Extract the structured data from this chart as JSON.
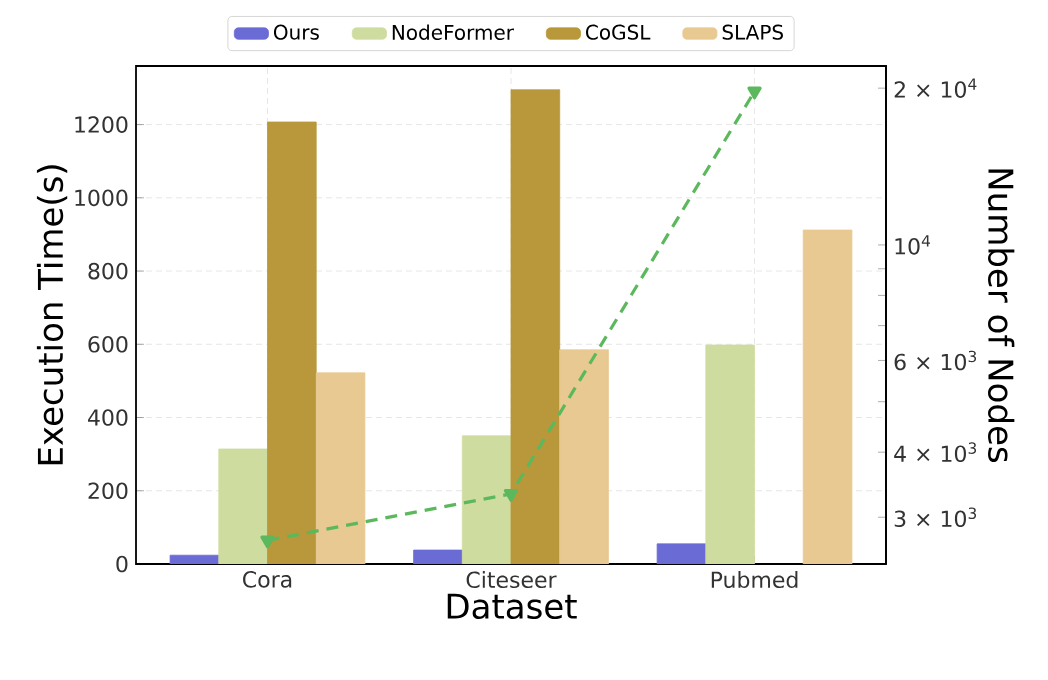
{
  "chart_data": {
    "type": "bar",
    "xlabel": "Dataset",
    "ylabel": "Execution Time(s)",
    "y2label": "Number of Nodes",
    "categories": [
      "Cora",
      "Citeseer",
      "Pubmed"
    ],
    "series": [
      {
        "name": "Ours",
        "color": "#6b6bd6",
        "values": [
          24,
          38,
          55
        ]
      },
      {
        "name": "NodeFormer",
        "color": "#cfdc9f",
        "values": [
          314,
          350,
          598
        ]
      },
      {
        "name": "CoGSL",
        "color": "#b8983a",
        "values": [
          1207,
          1295,
          null
        ]
      },
      {
        "name": "SLAPS",
        "color": "#e8c991",
        "values": [
          522,
          585,
          912
        ]
      },
      {
        "type": "line",
        "axis": "y2",
        "color": "#5cb85c",
        "marker": "triangle",
        "line_style": "dashed",
        "values": [
          2708,
          3327,
          19717
        ]
      }
    ],
    "ylim": [
      0,
      1360
    ],
    "yticks": [
      0,
      200,
      400,
      600,
      800,
      1000,
      1200
    ],
    "y2lim": [
      2440,
      22060
    ],
    "y2ticks": [
      {
        "value": 3000,
        "label": "3 × 10$^{3}$"
      },
      {
        "value": 4000,
        "label": "4 × 10$^{3}$"
      },
      {
        "value": 5000,
        "label": null
      },
      {
        "value": 6000,
        "label": "6 × 10$^{3}$"
      },
      {
        "value": 7000,
        "label": null
      },
      {
        "value": 8000,
        "label": null
      },
      {
        "value": 9000,
        "label": null
      },
      {
        "value": 10000,
        "label": "10$^{4}$"
      },
      {
        "value": 20000,
        "label": "2 × 10$^{4}$"
      }
    ],
    "log": "y2",
    "grid": true,
    "legend": "top"
  }
}
